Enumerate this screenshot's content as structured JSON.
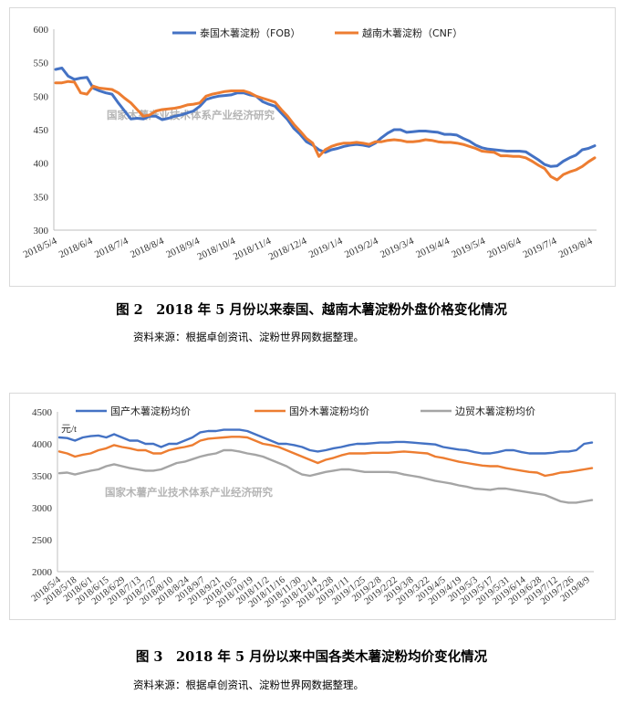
{
  "figures": [
    {
      "caption": "图 2　2018 年 5 月份以来泰国、越南木薯淀粉外盘价格变化情况",
      "source": "资料来源：根据卓创资讯、淀粉世界网数据整理。",
      "watermark": "国家木薯产业技术体系产业经济研究"
    },
    {
      "caption": "图 3　2018 年 5 月份以来中国各类木薯淀粉均价变化情况",
      "source": "资料来源：根据卓创资讯、淀粉世界网数据整理。",
      "watermark": "国家木薯产业技术体系产业经济研究",
      "unit": "元/t"
    }
  ],
  "chart_data": [
    {
      "type": "line",
      "ylim": [
        300,
        600
      ],
      "yticks": [
        300,
        350,
        400,
        450,
        500,
        550,
        600
      ],
      "x_tick_labels": [
        "2018/5/4",
        "2018/6/4",
        "2018/7/4",
        "2018/8/4",
        "2018/9/4",
        "2018/10/4",
        "2018/11/4",
        "2018/12/4",
        "2019/1/4",
        "2019/2/4",
        "2019/3/4",
        "2019/4/4",
        "2019/5/4",
        "2019/6/4",
        "2019/7/4",
        "2019/8/4"
      ],
      "legend_position": "top-right",
      "series": [
        {
          "name": "泰国木薯淀粉（FOB）",
          "color": "#4472c4",
          "values": [
            540,
            542,
            530,
            525,
            527,
            528,
            512,
            508,
            505,
            503,
            490,
            478,
            466,
            467,
            466,
            470,
            470,
            465,
            467,
            470,
            472,
            475,
            478,
            485,
            495,
            498,
            500,
            501,
            502,
            505,
            505,
            502,
            500,
            492,
            488,
            485,
            475,
            465,
            452,
            443,
            432,
            427,
            420,
            416,
            420,
            422,
            425,
            427,
            428,
            427,
            425,
            430,
            438,
            445,
            450,
            450,
            446,
            447,
            448,
            448,
            447,
            446,
            443,
            443,
            442,
            437,
            433,
            427,
            423,
            421,
            420,
            419,
            418,
            418,
            418,
            417,
            411,
            405,
            398,
            395,
            396,
            403,
            408,
            412,
            420,
            422,
            426
          ]
        },
        {
          "name": "越南木薯淀粉（CNF）",
          "color": "#ed7d31",
          "values": [
            520,
            520,
            522,
            521,
            505,
            503,
            515,
            512,
            511,
            510,
            505,
            497,
            490,
            480,
            470,
            472,
            478,
            480,
            481,
            482,
            484,
            487,
            488,
            490,
            500,
            503,
            505,
            507,
            508,
            508,
            508,
            505,
            500,
            497,
            494,
            491,
            480,
            470,
            458,
            448,
            437,
            430,
            410,
            420,
            425,
            428,
            430,
            430,
            431,
            430,
            428,
            432,
            432,
            434,
            435,
            434,
            432,
            432,
            433,
            435,
            434,
            432,
            431,
            431,
            430,
            428,
            425,
            422,
            418,
            417,
            416,
            411,
            411,
            410,
            410,
            408,
            403,
            397,
            392,
            380,
            375,
            383,
            387,
            390,
            395,
            402,
            408
          ]
        }
      ]
    },
    {
      "type": "line",
      "ylim": [
        2000,
        4500
      ],
      "yticks": [
        2000,
        2500,
        3000,
        3500,
        4000,
        4500
      ],
      "x_tick_labels": [
        "2018/5/4",
        "2018/5/18",
        "2018/6/1",
        "2018/6/15",
        "2018/6/29",
        "2018/7/13",
        "2018/7/27",
        "2018/8/10",
        "2018/8/24",
        "2018/9/7",
        "2018/9/21",
        "2018/10/5",
        "2018/10/19",
        "2018/11/2",
        "2018/11/16",
        "2018/11/30",
        "2018/12/14",
        "2018/12/28",
        "2019/1/11",
        "2019/1/25",
        "2019/2/8",
        "2019/2/22",
        "2019/3/8",
        "2019/3/22",
        "2019/4/5",
        "2019/4/19",
        "2019/5/3",
        "2019/5/17",
        "2019/5/31",
        "2019/6/14",
        "2019/6/28",
        "2019/7/12",
        "2019/7/26",
        "2019/8/9"
      ],
      "legend_position": "top",
      "series": [
        {
          "name": "国产木薯淀粉均价",
          "color": "#4472c4",
          "values": [
            4100,
            4090,
            4050,
            4100,
            4120,
            4130,
            4100,
            4150,
            4100,
            4050,
            4050,
            4000,
            4000,
            3950,
            4000,
            4000,
            4050,
            4100,
            4180,
            4200,
            4200,
            4220,
            4220,
            4220,
            4200,
            4150,
            4100,
            4050,
            4000,
            4000,
            3980,
            3950,
            3900,
            3880,
            3900,
            3930,
            3950,
            3980,
            4000,
            4000,
            4010,
            4020,
            4020,
            4030,
            4030,
            4020,
            4010,
            4000,
            3990,
            3950,
            3930,
            3910,
            3900,
            3870,
            3850,
            3850,
            3870,
            3900,
            3900,
            3870,
            3850,
            3850,
            3850,
            3860,
            3880,
            3880,
            3900,
            4000,
            4020
          ]
        },
        {
          "name": "国外木薯淀粉均价",
          "color": "#ed7d31",
          "values": [
            3880,
            3850,
            3800,
            3830,
            3850,
            3900,
            3930,
            3980,
            3950,
            3930,
            3900,
            3900,
            3850,
            3850,
            3900,
            3930,
            3950,
            3980,
            4050,
            4080,
            4090,
            4100,
            4110,
            4110,
            4100,
            4050,
            4000,
            3980,
            3950,
            3900,
            3850,
            3800,
            3750,
            3700,
            3750,
            3780,
            3820,
            3850,
            3850,
            3850,
            3860,
            3860,
            3860,
            3870,
            3880,
            3870,
            3860,
            3850,
            3800,
            3780,
            3750,
            3720,
            3700,
            3680,
            3660,
            3650,
            3650,
            3620,
            3600,
            3580,
            3560,
            3550,
            3500,
            3520,
            3550,
            3560,
            3580,
            3600,
            3620
          ]
        },
        {
          "name": "边贸木薯淀粉均价",
          "color": "#a5a5a5",
          "values": [
            3540,
            3550,
            3520,
            3550,
            3580,
            3600,
            3650,
            3680,
            3650,
            3620,
            3600,
            3580,
            3580,
            3600,
            3650,
            3700,
            3720,
            3760,
            3800,
            3830,
            3850,
            3900,
            3900,
            3880,
            3850,
            3830,
            3800,
            3750,
            3700,
            3650,
            3580,
            3520,
            3500,
            3530,
            3560,
            3580,
            3600,
            3600,
            3580,
            3560,
            3560,
            3560,
            3560,
            3550,
            3520,
            3500,
            3480,
            3450,
            3420,
            3400,
            3380,
            3350,
            3330,
            3300,
            3290,
            3280,
            3300,
            3300,
            3280,
            3260,
            3240,
            3220,
            3200,
            3150,
            3100,
            3080,
            3080,
            3100,
            3120
          ]
        }
      ]
    }
  ]
}
